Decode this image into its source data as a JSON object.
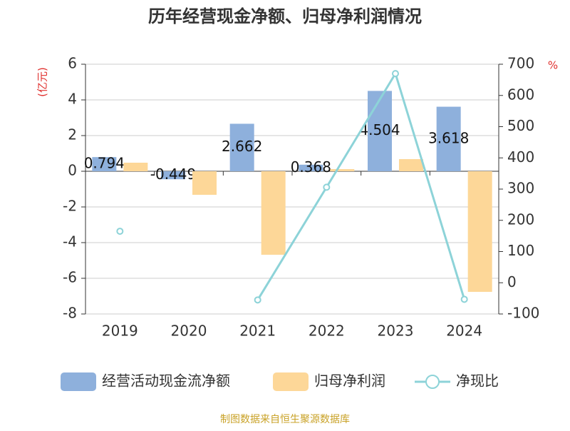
{
  "chart_data": {
    "type": "bar",
    "title": "历年经营现金净额、归母净利润情况",
    "y_label": "(亿元)",
    "y2_label": "%",
    "source": "制图数据来自恒生聚源数据库",
    "categories": [
      "2019",
      "2020",
      "2021",
      "2022",
      "2023",
      "2024"
    ],
    "series": [
      {
        "name": "经营活动现金流净额",
        "type": "bar",
        "color": "#8eb0dc",
        "values": [
          0.794,
          -0.449,
          2.662,
          0.368,
          4.504,
          3.618
        ],
        "show_labels": true
      },
      {
        "name": "归母净利润",
        "type": "bar",
        "color": "#fdd798",
        "values": [
          0.48,
          -1.32,
          -4.68,
          0.12,
          0.68,
          -6.76
        ]
      },
      {
        "name": "净现比",
        "type": "line",
        "axis": "y2",
        "color": "#8dd3d8",
        "values": [
          165,
          null,
          -55,
          306,
          670,
          -53
        ]
      }
    ],
    "ylim": [
      -8,
      6
    ],
    "yticks": [
      -8,
      -6,
      -4,
      -2,
      0,
      2,
      4,
      6
    ],
    "y2lim": [
      -100,
      700
    ],
    "y2ticks": [
      -100,
      0,
      100,
      200,
      300,
      400,
      500,
      600,
      700
    ],
    "grid": true
  }
}
